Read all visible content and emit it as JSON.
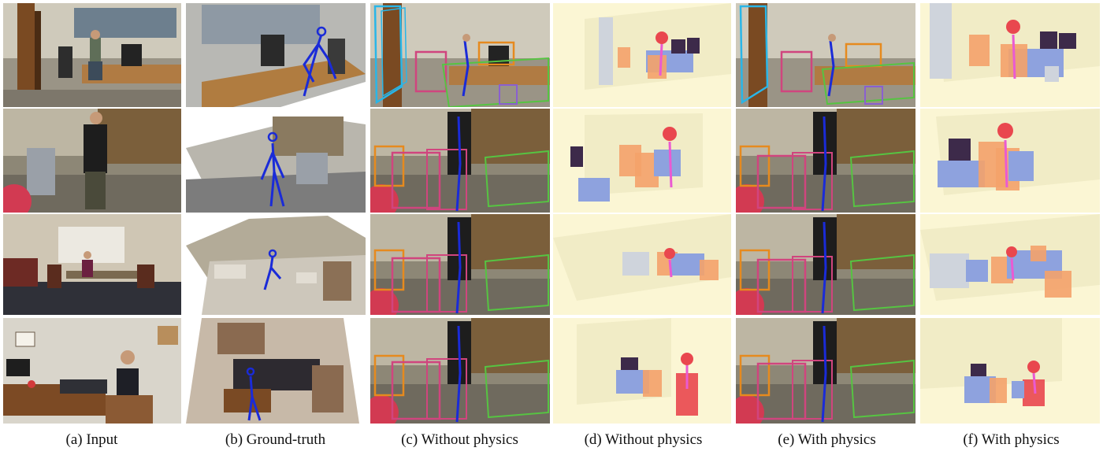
{
  "figure": {
    "columns": [
      {
        "id": "a",
        "caption": "(a) Input",
        "kind": "photo"
      },
      {
        "id": "b",
        "caption": "(b) Ground-truth",
        "kind": "reconstruction"
      },
      {
        "id": "c",
        "caption": "(c) Without physics",
        "kind": "overlay"
      },
      {
        "id": "d",
        "caption": "(d) Without physics",
        "kind": "render3d"
      },
      {
        "id": "e",
        "caption": "(e) With physics",
        "kind": "overlay"
      },
      {
        "id": "f",
        "caption": "(f) With physics",
        "kind": "render3d"
      }
    ],
    "rows": 4,
    "colors": {
      "cyan_box": "#29b6e8",
      "magenta_box": "#d0457e",
      "orange_box": "#e68a1e",
      "green_box": "#56c442",
      "purple_box": "#8a5fd0",
      "skeleton_blue": "#1a2bd8",
      "render_floor": "#fbf6d4",
      "render_wall": "#f1ecc6",
      "render_blue": "#8ea2de",
      "render_orange": "#f4a26a",
      "render_dark": "#3d2a4a",
      "render_red": "#e9474e",
      "render_grey": "#cfd4dc",
      "render_pink": "#ea5ad2"
    }
  }
}
